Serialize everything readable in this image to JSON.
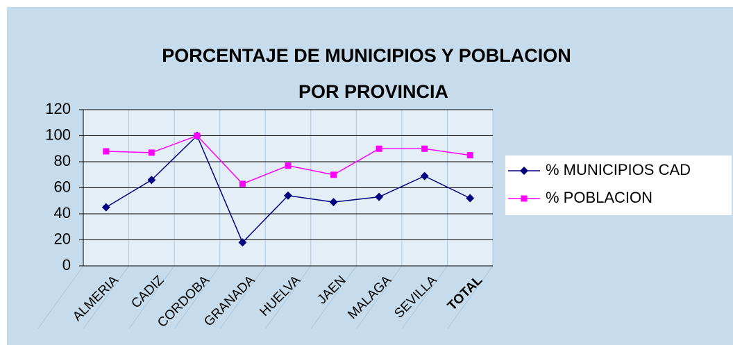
{
  "chart_data": {
    "type": "line",
    "title": [
      "PORCENTAJE DE MUNICIPIOS Y POBLACION",
      "POR PROVINCIA"
    ],
    "categories": [
      "ALMERIA",
      "CADIZ",
      "CORDOBA",
      "GRANADA",
      "HUELVA",
      "JAEN",
      "MALAGA",
      "SEVILLA",
      "TOTAL"
    ],
    "bold_categories": [
      8
    ],
    "series": [
      {
        "name": "% MUNICIPIOS CAD",
        "color": "#000080",
        "marker": "diamond",
        "values": [
          45,
          66,
          100,
          18,
          54,
          49,
          53,
          69,
          52
        ]
      },
      {
        "name": "% POBLACION",
        "color": "#ff00ff",
        "marker": "square",
        "values": [
          88,
          87,
          100,
          63,
          77,
          70,
          90,
          90,
          85
        ]
      }
    ],
    "ylim": [
      0,
      120
    ],
    "yticks": [
      0,
      20,
      40,
      60,
      80,
      100,
      120
    ],
    "grid": true,
    "legend": "right"
  }
}
